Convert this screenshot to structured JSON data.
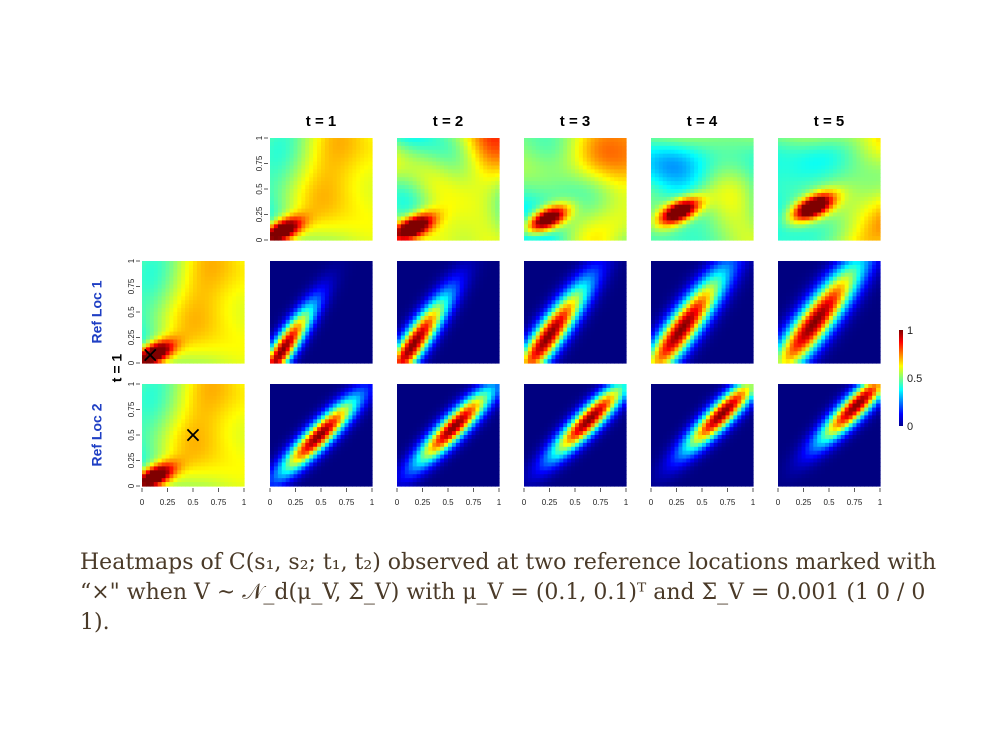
{
  "chart_data": {
    "type": "heatmap",
    "layout": "grid",
    "column_titles": [
      "t = 1",
      "t = 2",
      "t = 3",
      "t = 4",
      "t = 5"
    ],
    "row_labels": [
      "Ref Loc 1",
      "Ref Loc 2"
    ],
    "reference_time_label": "t = 1",
    "axis_ticks": [
      "0",
      "0.25",
      "0.5",
      "0.75",
      "1"
    ],
    "xlim": [
      0,
      1
    ],
    "ylim": [
      0,
      1
    ],
    "colorbar": {
      "ticks": [
        "0",
        "0.5",
        "1"
      ],
      "range": [
        0,
        1
      ],
      "colormap": "jet"
    },
    "reference_marker": "×",
    "reference_locations": [
      {
        "name": "Ref Loc 1",
        "x": 0.08,
        "y": 0.08
      },
      {
        "name": "Ref Loc 2",
        "x": 0.5,
        "y": 0.5
      }
    ],
    "heatmap_peaks": {
      "Ref Loc 1": [
        {
          "t": 1,
          "x": 0.12,
          "y": 0.12
        },
        {
          "t": 2,
          "x": 0.16,
          "y": 0.18
        },
        {
          "t": 3,
          "x": 0.24,
          "y": 0.26
        },
        {
          "t": 4,
          "x": 0.3,
          "y": 0.33
        },
        {
          "t": 5,
          "x": 0.36,
          "y": 0.4
        }
      ],
      "Ref Loc 2": [
        {
          "t": 1,
          "x": 0.48,
          "y": 0.49
        },
        {
          "t": 2,
          "x": 0.56,
          "y": 0.58
        },
        {
          "t": 3,
          "x": 0.64,
          "y": 0.65
        },
        {
          "t": 4,
          "x": 0.7,
          "y": 0.71
        },
        {
          "t": 5,
          "x": 0.77,
          "y": 0.79
        }
      ]
    }
  },
  "caption": {
    "text": "Heatmaps of C(s₁, s₂; t₁, t₂) observed at two reference locations marked with “×\" when V ~ 𝒩_d(μ_V, Σ_V) with μ_V = (0.1, 0.1)ᵀ and Σ_V = 0.001 (1 0 / 0 1)."
  }
}
